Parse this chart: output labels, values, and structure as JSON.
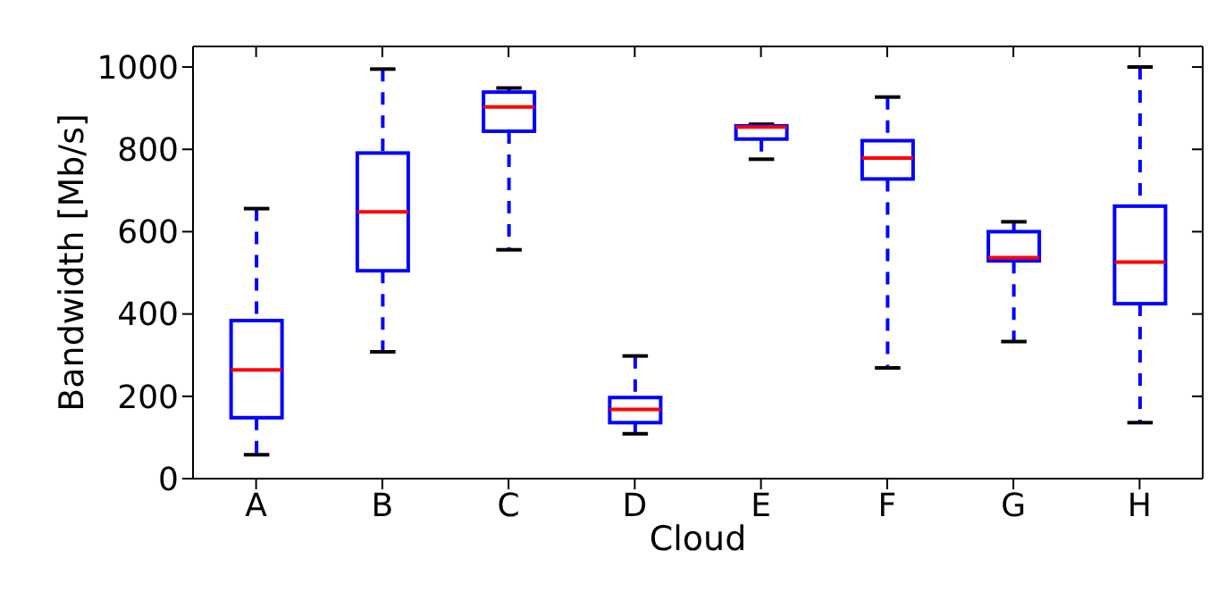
{
  "chart_data": {
    "type": "box",
    "xlabel": "Cloud",
    "ylabel": "Bandwidth [Mb/s]",
    "categories": [
      "A",
      "B",
      "C",
      "D",
      "E",
      "F",
      "G",
      "H"
    ],
    "ylim": [
      0,
      1050
    ],
    "yticks": [
      0,
      200,
      400,
      600,
      800,
      1000
    ],
    "grid": false,
    "color": "#0000ff",
    "boxes": [
      {
        "low": 58,
        "q1": 148,
        "median": 264,
        "q3": 384,
        "high": 656
      },
      {
        "low": 308,
        "q1": 505,
        "median": 648,
        "q3": 791,
        "high": 995
      },
      {
        "low": 556,
        "q1": 844,
        "median": 903,
        "q3": 939,
        "high": 949
      },
      {
        "low": 109,
        "q1": 136,
        "median": 168,
        "q3": 197,
        "high": 298
      },
      {
        "low": 776,
        "q1": 825,
        "median": 854,
        "q3": 857,
        "high": 861
      },
      {
        "low": 269,
        "q1": 728,
        "median": 779,
        "q3": 821,
        "high": 927
      },
      {
        "low": 333,
        "q1": 529,
        "median": 537,
        "q3": 600,
        "high": 624
      },
      {
        "low": 136,
        "q1": 425,
        "median": 526,
        "q3": 662,
        "high": 1000
      }
    ]
  }
}
